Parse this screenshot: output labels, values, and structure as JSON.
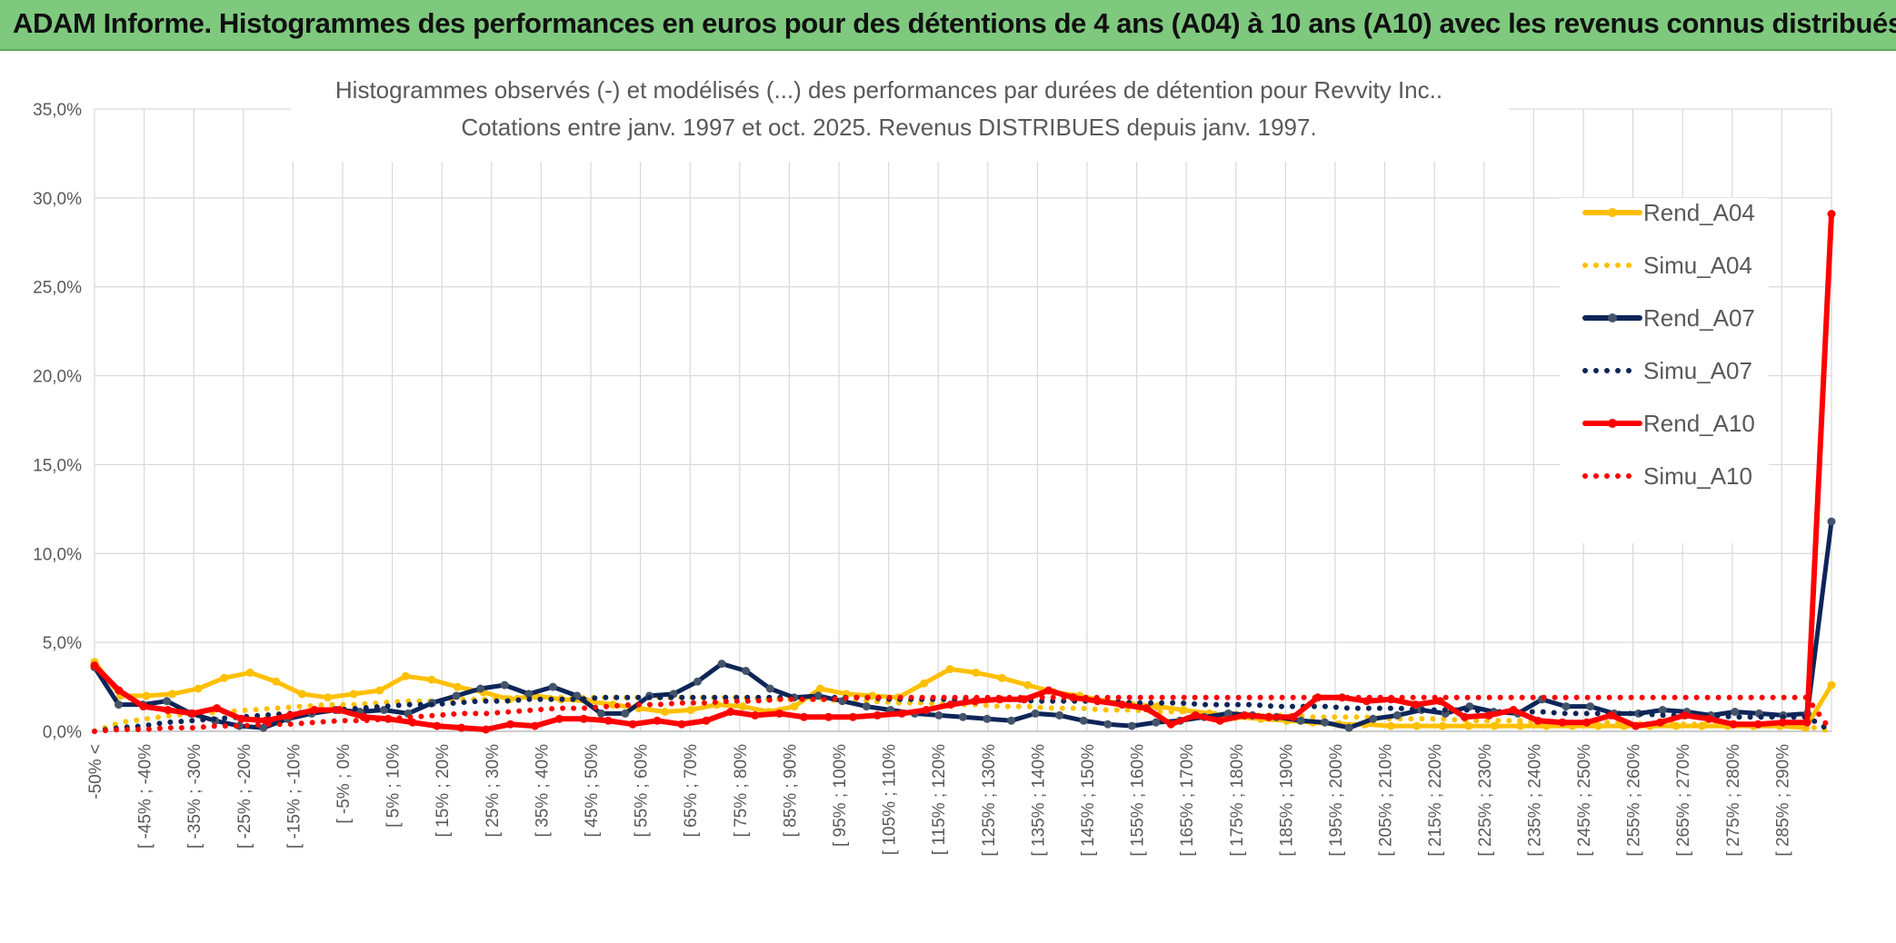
{
  "header": {
    "title": "ADAM Informe. Histogrammes des performances en euros pour des détentions de 4 ans (A04) à 10 ans (A10) avec les revenus connus distribués"
  },
  "colors": {
    "header_bg": "#7ec97e",
    "A04": "#ffc000",
    "A07": "#0d2558",
    "A10": "#ff0000",
    "grid": "#d9d9d9"
  },
  "chart_data": {
    "type": "line",
    "title": "Histogrammes observés (-) et modélisés (...) des performances par durées de détention pour Revvity Inc..",
    "subtitle": "Cotations entre janv. 1997 et oct. 2025. Revenus DISTRIBUES depuis janv. 1997.",
    "xlabel": "",
    "ylabel": "",
    "ylim": [
      0,
      35
    ],
    "yticks": [
      "0,0%",
      "5,0%",
      "10,0%",
      "15,0%",
      "20,0%",
      "25,0%",
      "30,0%",
      "35,0%"
    ],
    "x_tick_labels": [
      "-50% <",
      "[ -45% ; -40%",
      "[ -35% ; -30%",
      "[ -25% ; -20%",
      "[ -15% ; -10%",
      "[ -5% ; 0%",
      "[ 5% ; 10%",
      "[ 15% ; 20%",
      "[ 25% ; 30%",
      "[ 35% ; 40%",
      "[ 45% ; 50%",
      "[ 55% ; 60%",
      "[ 65% ; 70%",
      "[ 75% ; 80%",
      "[ 85% ; 90%",
      "[ 95% ; 100%",
      "[ 105% ; 110%",
      "[ 115% ; 120%",
      "[ 125% ; 130%",
      "[ 135% ; 140%",
      "[ 145% ; 150%",
      "[ 155% ; 160%",
      "[ 165% ; 170%",
      "[ 175% ; 180%",
      "[ 185% ; 190%",
      "[ 195% ; 200%",
      "[ 205% ; 210%",
      "[ 215% ; 220%",
      "[ 225% ; 230%",
      "[ 235% ; 240%",
      "[ 245% ; 250%",
      "[ 255% ; 260%",
      "[ 265% ; 270%",
      "[ 275% ; 280%",
      "[ 285% ; 290%"
    ],
    "legend_position": "right",
    "series": [
      {
        "name": "Rend_A04",
        "style": "solid",
        "color": "#ffc000",
        "values": [
          3.9,
          2.0,
          2.0,
          2.1,
          2.4,
          3.0,
          3.3,
          2.8,
          2.1,
          1.9,
          2.1,
          2.3,
          3.1,
          2.9,
          2.5,
          2.2,
          1.8,
          2.0,
          1.8,
          1.7,
          1.5,
          1.3,
          1.1,
          1.2,
          1.5,
          1.4,
          1.1,
          1.4,
          2.4,
          2.1,
          2.0,
          1.9,
          2.7,
          3.5,
          3.3,
          3.0,
          2.6,
          2.2,
          2.0,
          1.7,
          1.5,
          1.4,
          1.2,
          1.0,
          0.8,
          0.7,
          0.6,
          0.5,
          0.4,
          0.4,
          0.3,
          0.3,
          0.3,
          0.3,
          0.3,
          0.3,
          0.3,
          0.3,
          0.3,
          0.3,
          0.3,
          0.3,
          0.3,
          0.3,
          0.3,
          0.3,
          0.2,
          2.6
        ]
      },
      {
        "name": "Simu_A04",
        "style": "dotted",
        "color": "#ffc000",
        "values": [
          0.0,
          0.5,
          0.7,
          0.9,
          1.0,
          1.1,
          1.2,
          1.3,
          1.4,
          1.5,
          1.5,
          1.6,
          1.7,
          1.7,
          1.8,
          1.8,
          1.9,
          1.9,
          1.9,
          1.9,
          1.9,
          1.9,
          1.9,
          1.9,
          1.9,
          1.9,
          1.8,
          1.8,
          1.8,
          1.7,
          1.7,
          1.6,
          1.6,
          1.5,
          1.5,
          1.4,
          1.4,
          1.3,
          1.3,
          1.2,
          1.2,
          1.1,
          1.1,
          1.0,
          1.0,
          0.9,
          0.9,
          0.8,
          0.8,
          0.8,
          0.7,
          0.7,
          0.7,
          0.6,
          0.6,
          0.6,
          0.5,
          0.5,
          0.5,
          0.5,
          0.4,
          0.4,
          0.4,
          0.4,
          0.3,
          0.3,
          0.3,
          0.0
        ]
      },
      {
        "name": "Rend_A07",
        "style": "solid",
        "color": "#0d2558",
        "values": [
          3.6,
          1.5,
          1.5,
          1.7,
          1.0,
          0.6,
          0.3,
          0.2,
          0.7,
          1.0,
          1.2,
          1.1,
          1.2,
          1.0,
          1.6,
          2.0,
          2.4,
          2.6,
          2.1,
          2.5,
          2.0,
          1.0,
          1.0,
          2.0,
          2.1,
          2.8,
          3.8,
          3.4,
          2.4,
          1.9,
          2.0,
          1.7,
          1.4,
          1.2,
          1.0,
          0.9,
          0.8,
          0.7,
          0.6,
          1.0,
          0.9,
          0.6,
          0.4,
          0.3,
          0.5,
          0.6,
          0.8,
          1.0,
          0.9,
          0.8,
          0.6,
          0.5,
          0.2,
          0.7,
          0.9,
          1.2,
          1.0,
          1.4,
          1.1,
          1.0,
          1.8,
          1.4,
          1.4,
          1.0,
          1.0,
          1.2,
          1.1,
          0.9,
          1.1,
          1.0,
          0.9,
          1.0,
          11.8
        ]
      },
      {
        "name": "Simu_A07",
        "style": "dotted",
        "color": "#0d2558",
        "values": [
          0.0,
          0.2,
          0.3,
          0.5,
          0.6,
          0.7,
          0.8,
          0.9,
          1.0,
          1.1,
          1.2,
          1.3,
          1.4,
          1.5,
          1.5,
          1.6,
          1.7,
          1.7,
          1.8,
          1.8,
          1.8,
          1.9,
          1.9,
          1.9,
          1.9,
          1.9,
          1.9,
          1.9,
          1.9,
          1.9,
          1.9,
          1.9,
          1.9,
          1.8,
          1.8,
          1.8,
          1.8,
          1.8,
          1.8,
          1.7,
          1.7,
          1.7,
          1.7,
          1.6,
          1.6,
          1.6,
          1.5,
          1.5,
          1.5,
          1.4,
          1.4,
          1.4,
          1.3,
          1.3,
          1.3,
          1.2,
          1.2,
          1.2,
          1.1,
          1.1,
          1.1,
          1.0,
          1.0,
          1.0,
          1.0,
          0.9,
          0.9,
          0.9,
          0.8,
          0.8,
          0.8,
          0.8,
          0.0
        ]
      },
      {
        "name": "Rend_A10",
        "style": "solid",
        "color": "#ff0000",
        "values": [
          3.7,
          2.3,
          1.4,
          1.2,
          1.0,
          1.3,
          0.7,
          0.6,
          0.9,
          1.2,
          1.2,
          0.8,
          0.7,
          0.5,
          0.3,
          0.2,
          0.1,
          0.4,
          0.3,
          0.7,
          0.7,
          0.6,
          0.4,
          0.6,
          0.4,
          0.6,
          1.1,
          0.9,
          1.0,
          0.8,
          0.8,
          0.8,
          0.9,
          1.0,
          1.2,
          1.5,
          1.7,
          1.8,
          1.8,
          2.3,
          1.9,
          1.7,
          1.5,
          1.3,
          0.4,
          0.9,
          0.6,
          0.9,
          0.8,
          0.8,
          1.9,
          1.9,
          1.7,
          1.8,
          1.5,
          1.7,
          0.8,
          0.9,
          1.2,
          0.6,
          0.5,
          0.5,
          0.9,
          0.3,
          0.5,
          0.9,
          0.7,
          0.4,
          0.4,
          0.5,
          0.5,
          29.1
        ]
      },
      {
        "name": "Simu_A10",
        "style": "dotted",
        "color": "#ff0000",
        "values": [
          0.0,
          0.1,
          0.1,
          0.2,
          0.2,
          0.3,
          0.3,
          0.4,
          0.4,
          0.5,
          0.6,
          0.6,
          0.7,
          0.8,
          0.9,
          1.0,
          1.0,
          1.1,
          1.2,
          1.3,
          1.3,
          1.4,
          1.5,
          1.5,
          1.6,
          1.6,
          1.7,
          1.7,
          1.8,
          1.8,
          1.8,
          1.9,
          1.9,
          1.9,
          1.9,
          1.9,
          1.9,
          1.9,
          1.9,
          1.9,
          1.9,
          1.9,
          1.9,
          1.9,
          1.9,
          1.9,
          1.9,
          1.9,
          1.9,
          1.9,
          1.9,
          1.9,
          1.9,
          1.9,
          1.9,
          1.9,
          1.9,
          1.9,
          1.9,
          1.9,
          1.9,
          1.9,
          1.9,
          1.9,
          1.9,
          1.9,
          1.9,
          1.9,
          1.9,
          1.9,
          1.9,
          0.0
        ]
      }
    ]
  }
}
